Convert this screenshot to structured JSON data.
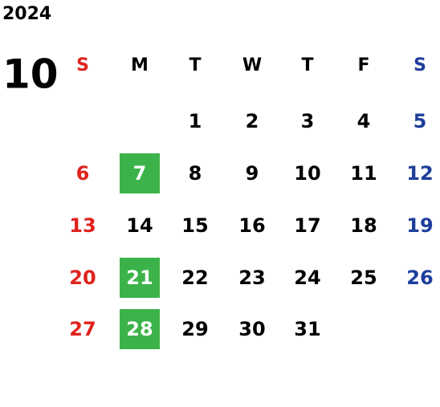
{
  "calendar": {
    "year": "2024",
    "month": "10",
    "weekdays": [
      "S",
      "M",
      "T",
      "W",
      "T",
      "F",
      "S"
    ],
    "weeks": [
      [
        null,
        null,
        "1",
        "2",
        "3",
        "4",
        "5"
      ],
      [
        "6",
        {
          "day": "7",
          "highlighted": true
        },
        "8",
        "9",
        "10",
        "11",
        "12"
      ],
      [
        "13",
        "14",
        "15",
        "16",
        "17",
        "18",
        "19"
      ],
      [
        "20",
        {
          "day": "21",
          "highlighted": true
        },
        "22",
        "23",
        "24",
        "25",
        "26"
      ],
      [
        "27",
        {
          "day": "28",
          "highlighted": true
        },
        "29",
        "30",
        "31",
        null,
        null
      ]
    ],
    "sunday_color": "#e0221c",
    "saturday_color": "#1d3e9b",
    "weekday_color": "#000000",
    "highlight_color": "#3cb34a",
    "highlight_text_color": "#ffffff"
  }
}
